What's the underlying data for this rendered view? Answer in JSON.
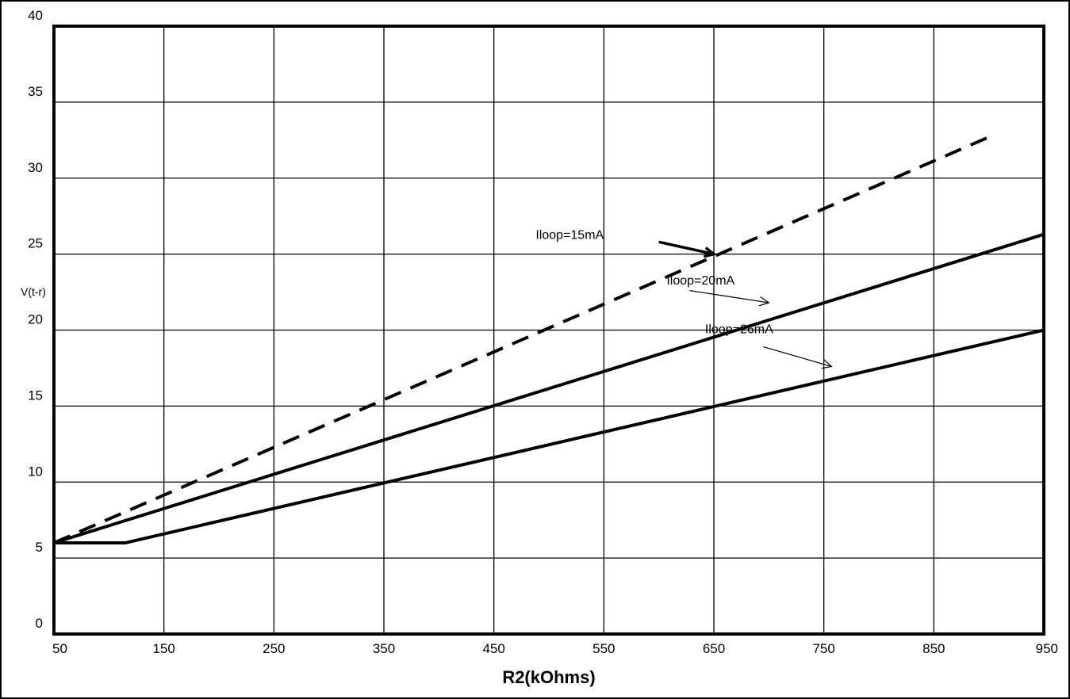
{
  "chart_data": {
    "type": "line",
    "xlabel": "R2(kOhms)",
    "ylabel": "V(t-r)",
    "xlim": [
      50,
      950
    ],
    "ylim": [
      0,
      40
    ],
    "grid": true,
    "x_ticks": [
      50,
      150,
      250,
      350,
      450,
      550,
      650,
      750,
      850,
      950
    ],
    "y_ticks": [
      0,
      5,
      10,
      15,
      20,
      25,
      30,
      35,
      40
    ],
    "series": [
      {
        "name": "Iloop=15mA",
        "style": "dashed",
        "color": "#000000",
        "x": [
          50,
          900
        ],
        "y": [
          6,
          32.7
        ]
      },
      {
        "name": "Iloop=20mA",
        "style": "solid",
        "color": "#000000",
        "x": [
          50,
          950
        ],
        "y": [
          6,
          26.3
        ]
      },
      {
        "name": "Iloop=26mA",
        "style": "solid",
        "color": "#000000",
        "x": [
          50,
          115,
          950
        ],
        "y": [
          6,
          6,
          20
        ]
      }
    ],
    "annotations": [
      {
        "text": "Iloop=15mA",
        "label_x": 488,
        "label_y": 26.0,
        "arrow_to_x": 650,
        "arrow_to_y": 25.0,
        "arrow_from_x": 600,
        "arrow_from_y": 25.8
      },
      {
        "text": "Iloop=20mA",
        "label_x": 607,
        "label_y": 23.0,
        "arrow_to_x": 700,
        "arrow_to_y": 21.8,
        "arrow_from_x": 628,
        "arrow_from_y": 22.6
      },
      {
        "text": "Iloop=26mA",
        "label_x": 642,
        "label_y": 19.8,
        "arrow_to_x": 757,
        "arrow_to_y": 17.6,
        "arrow_from_x": 695,
        "arrow_from_y": 18.9
      }
    ]
  }
}
